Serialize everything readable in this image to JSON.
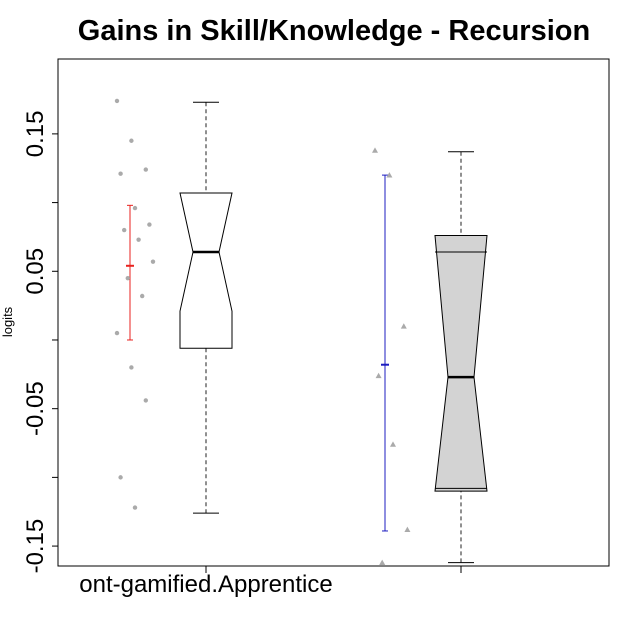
{
  "chart_data": {
    "type": "boxplot",
    "title": "Gains in Skill/Knowledge - Recursion",
    "xlabel": "",
    "ylabel": "logits",
    "ylim": [
      -0.1645,
      0.2045
    ],
    "yticks": [
      -0.15,
      -0.1,
      -0.05,
      0.0,
      0.05,
      0.1,
      0.15
    ],
    "ytick_labels": [
      "-0.15",
      "",
      "-0.05",
      "",
      "0.05",
      "",
      "0.15"
    ],
    "categories": [
      "non-gamified.Apprentice",
      ""
    ],
    "visible_category_labels": [
      "ont-gamified.Apprentice",
      ""
    ],
    "grid": false,
    "series": [
      {
        "box": {
          "whisker_low": -0.126,
          "q1": -0.006,
          "median": 0.064,
          "q3": 0.107,
          "whisker_high": 0.173,
          "notch_low": 0.021,
          "notch_high": 0.107
        },
        "fill": "#ffffff",
        "mean": 0.054,
        "ci": [
          0.0,
          0.098
        ],
        "ci_color": "#e8221f",
        "point_shape": "circle",
        "points": [
          0.174,
          0.145,
          0.124,
          0.121,
          0.096,
          0.084,
          0.08,
          0.073,
          0.057,
          0.045,
          0.032,
          0.005,
          -0.02,
          -0.044,
          -0.1,
          -0.122
        ]
      },
      {
        "box": {
          "whisker_low": -0.162,
          "q1": -0.108,
          "median": -0.027,
          "q3": 0.064,
          "whisker_high": 0.137,
          "notch_low": -0.11,
          "notch_high": 0.076
        },
        "fill": "#d3d3d3",
        "mean": -0.018,
        "ci": [
          -0.139,
          0.12
        ],
        "ci_color": "#1c1cc0",
        "point_shape": "triangle",
        "points": [
          0.138,
          0.12,
          0.01,
          -0.026,
          -0.076,
          -0.138,
          -0.162
        ]
      }
    ]
  }
}
